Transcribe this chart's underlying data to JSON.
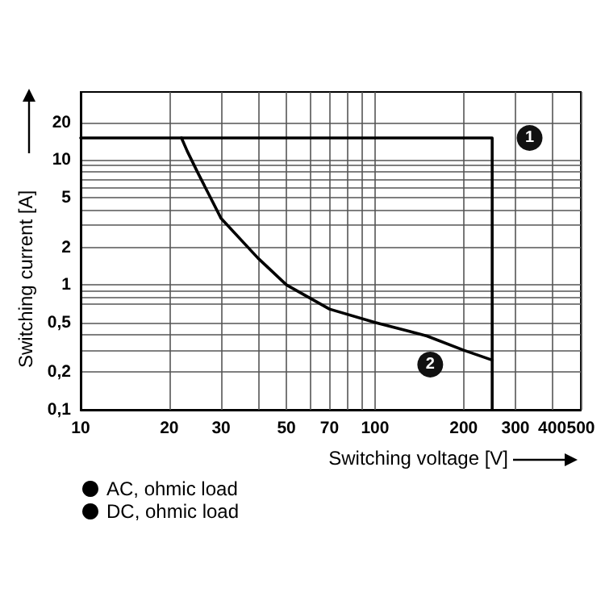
{
  "chart_data": {
    "type": "line",
    "xlabel": "Switching voltage [V]",
    "ylabel": "Switching current [A]",
    "log": "xy",
    "grid": true,
    "legend": "bottom left",
    "marker": "none",
    "line_style": "solid",
    "xlim": [
      10,
      500
    ],
    "ylim": [
      0.1,
      35
    ],
    "xticks": [
      10,
      20,
      30,
      {
        "value": 40,
        "label": null
      },
      50,
      {
        "value": 60,
        "label": null
      },
      70,
      {
        "value": 80,
        "label": null
      },
      {
        "value": 90,
        "label": null
      },
      100,
      200,
      300,
      400,
      500
    ],
    "yticks": [
      {
        "value": 0.1,
        "label": "0,1"
      },
      {
        "value": 0.2,
        "label": "0,2"
      },
      {
        "value": 0.3,
        "label": null
      },
      {
        "value": 0.4,
        "label": null
      },
      {
        "value": 0.5,
        "label": "0,5"
      },
      {
        "value": 0.7,
        "label": null
      },
      {
        "value": 0.8,
        "label": null
      },
      {
        "value": 0.9,
        "label": null
      },
      1,
      2,
      {
        "value": 3,
        "label": null
      },
      {
        "value": 4,
        "label": null
      },
      5,
      {
        "value": 6,
        "label": null
      },
      {
        "value": 7,
        "label": null
      },
      {
        "value": 8,
        "label": null
      },
      {
        "value": 9,
        "label": null
      },
      10,
      20
    ],
    "series": [
      {
        "name": "AC, ohmic load",
        "color": "#000000",
        "x": [
          10,
          250,
          250
        ],
        "values": [
          15,
          15,
          0.1
        ]
      },
      {
        "name": "DC, ohmic load",
        "color": "#000000",
        "x": [
          22,
          23,
          25,
          30,
          40,
          50,
          70,
          100,
          150,
          200,
          250
        ],
        "values": [
          15,
          11.8,
          7.9,
          3.4,
          1.64,
          1.0,
          0.64,
          0.5,
          0.39,
          0.3,
          0.25
        ]
      }
    ],
    "annotations": [
      {
        "text": "1",
        "x": 335,
        "y": 15
      },
      {
        "text": "2",
        "x": 154,
        "y": 0.23
      }
    ]
  }
}
